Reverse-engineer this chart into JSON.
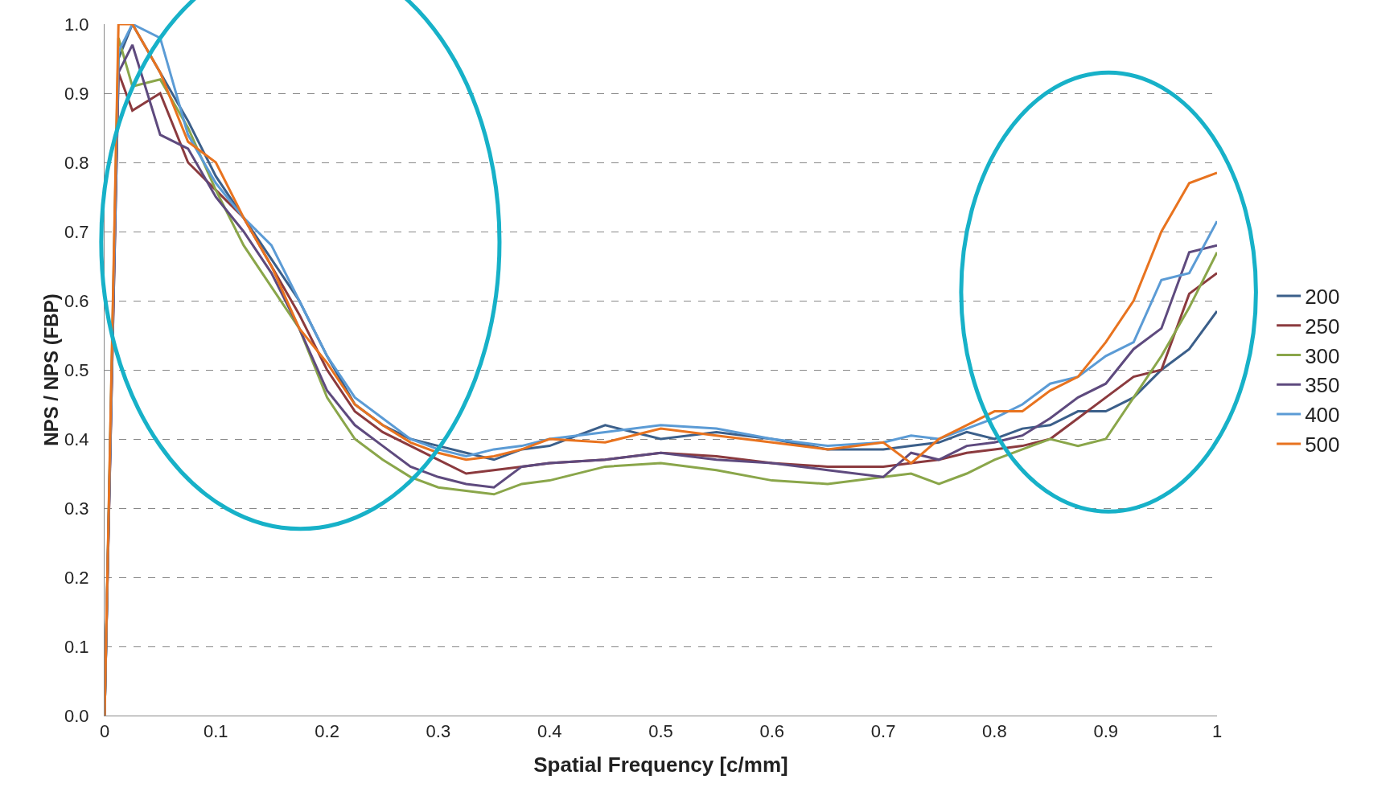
{
  "chart_data": {
    "type": "line",
    "xlabel": "Spatial Frequency [c/mm]",
    "ylabel": "NPS / NPS (FBP)",
    "x": [
      0,
      0.0125,
      0.025,
      0.05,
      0.075,
      0.1,
      0.125,
      0.15,
      0.175,
      0.2,
      0.225,
      0.25,
      0.275,
      0.3,
      0.325,
      0.35,
      0.375,
      0.4,
      0.45,
      0.5,
      0.55,
      0.6,
      0.65,
      0.7,
      0.725,
      0.75,
      0.775,
      0.8,
      0.825,
      0.85,
      0.875,
      0.9,
      0.925,
      0.95,
      0.975,
      1
    ],
    "series": [
      {
        "name": "200",
        "color": "#3b5f8a",
        "values": [
          0,
          0.95,
          1.0,
          0.93,
          0.86,
          0.78,
          0.72,
          0.66,
          0.6,
          0.52,
          0.45,
          0.42,
          0.4,
          0.39,
          0.38,
          0.37,
          0.385,
          0.39,
          0.42,
          0.4,
          0.41,
          0.4,
          0.385,
          0.385,
          0.39,
          0.395,
          0.41,
          0.4,
          0.415,
          0.42,
          0.44,
          0.44,
          0.46,
          0.5,
          0.53,
          0.585
        ]
      },
      {
        "name": "250",
        "color": "#8b3a3e",
        "values": [
          0,
          0.93,
          0.875,
          0.9,
          0.8,
          0.76,
          0.72,
          0.65,
          0.58,
          0.5,
          0.44,
          0.41,
          0.39,
          0.37,
          0.35,
          0.355,
          0.36,
          0.365,
          0.37,
          0.38,
          0.375,
          0.365,
          0.36,
          0.36,
          0.365,
          0.37,
          0.38,
          0.385,
          0.39,
          0.4,
          0.43,
          0.46,
          0.49,
          0.5,
          0.61,
          0.64
        ]
      },
      {
        "name": "300",
        "color": "#8aa64a",
        "values": [
          0,
          0.98,
          0.91,
          0.92,
          0.85,
          0.76,
          0.68,
          0.62,
          0.56,
          0.46,
          0.4,
          0.37,
          0.345,
          0.33,
          0.325,
          0.32,
          0.335,
          0.34,
          0.36,
          0.365,
          0.355,
          0.34,
          0.335,
          0.345,
          0.35,
          0.335,
          0.35,
          0.37,
          0.385,
          0.4,
          0.39,
          0.4,
          0.46,
          0.52,
          0.59,
          0.67
        ]
      },
      {
        "name": "350",
        "color": "#5e4a7e",
        "values": [
          0,
          0.93,
          0.97,
          0.84,
          0.82,
          0.75,
          0.7,
          0.64,
          0.56,
          0.47,
          0.42,
          0.39,
          0.36,
          0.345,
          0.335,
          0.33,
          0.36,
          0.365,
          0.37,
          0.38,
          0.37,
          0.365,
          0.355,
          0.345,
          0.38,
          0.37,
          0.39,
          0.395,
          0.405,
          0.43,
          0.46,
          0.48,
          0.53,
          0.56,
          0.67,
          0.68
        ]
      },
      {
        "name": "400",
        "color": "#5b9bd5",
        "values": [
          0,
          0.96,
          1.0,
          0.98,
          0.84,
          0.77,
          0.72,
          0.68,
          0.6,
          0.52,
          0.46,
          0.43,
          0.4,
          0.385,
          0.375,
          0.385,
          0.39,
          0.4,
          0.41,
          0.42,
          0.415,
          0.4,
          0.39,
          0.395,
          0.405,
          0.4,
          0.415,
          0.43,
          0.45,
          0.48,
          0.49,
          0.52,
          0.54,
          0.63,
          0.64,
          0.715
        ]
      },
      {
        "name": "500",
        "color": "#e8731f",
        "values": [
          0,
          1.0,
          1.0,
          0.93,
          0.83,
          0.8,
          0.72,
          0.65,
          0.56,
          0.51,
          0.45,
          0.42,
          0.395,
          0.38,
          0.37,
          0.375,
          0.385,
          0.4,
          0.395,
          0.415,
          0.405,
          0.395,
          0.385,
          0.395,
          0.365,
          0.4,
          0.42,
          0.44,
          0.44,
          0.47,
          0.49,
          0.54,
          0.6,
          0.7,
          0.77,
          0.785
        ]
      }
    ],
    "xlim": [
      0,
      1
    ],
    "xticks": [
      0,
      0.1,
      0.2,
      0.3,
      0.4,
      0.5,
      0.6,
      0.7,
      0.8,
      0.9,
      1
    ],
    "ylim": [
      0,
      1
    ],
    "yticks": [
      {
        "value": 0,
        "label": "0.0"
      },
      0.1,
      0.2,
      0.3,
      0.4,
      0.5,
      0.6,
      0.7,
      0.8,
      0.9,
      {
        "value": 1,
        "label": "1.0"
      }
    ],
    "grid": "y",
    "legend": "right",
    "line_style": "solid",
    "marker": "none"
  }
}
